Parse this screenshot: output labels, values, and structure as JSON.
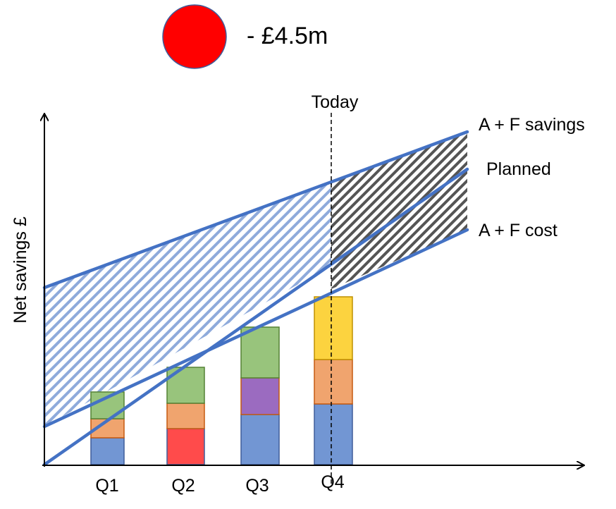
{
  "indicator": {
    "status_color": "#ff0000",
    "value_label": "- £4.5m"
  },
  "axes": {
    "y_label": "Net savings £"
  },
  "marker": {
    "label": "Today"
  },
  "lines": {
    "savings_label": "A + F savings",
    "planned_label": "Planned",
    "cost_label": "A + F cost",
    "color": "#4472c4"
  },
  "quarters": [
    {
      "label": "Q1",
      "segments": [
        "#7296d3",
        "#f0a46e",
        "#98c47c"
      ]
    },
    {
      "label": "Q2",
      "segments": [
        "#ff4b4b",
        "#f0a46e",
        "#98c47c"
      ]
    },
    {
      "label": "Q3",
      "segments": [
        "#7296d3",
        "#9b6bc0",
        "#98c47c"
      ]
    },
    {
      "label": "Q4",
      "segments": [
        "#7296d3",
        "#f0a46e",
        "#fcd33f"
      ]
    }
  ]
}
